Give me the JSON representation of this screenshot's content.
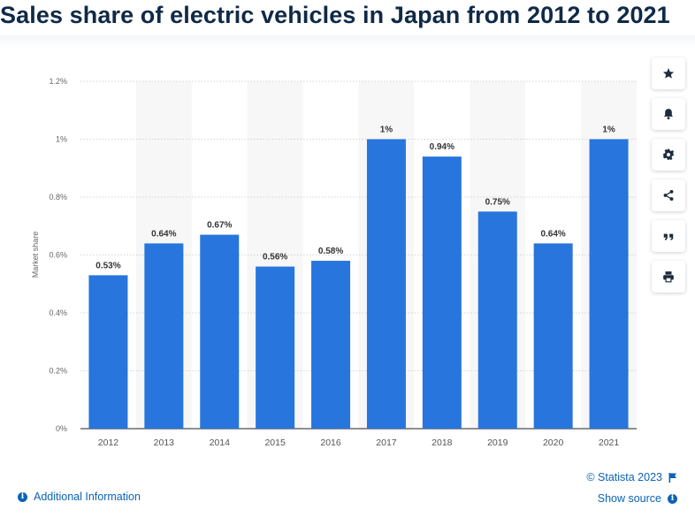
{
  "page": {
    "title": "Sales share of electric vehicles in Japan from 2012 to 2021"
  },
  "chart_data": {
    "type": "bar",
    "title": "Sales share of electric vehicles in Japan from 2012 to 2021",
    "categories": [
      "2012",
      "2013",
      "2014",
      "2015",
      "2016",
      "2017",
      "2018",
      "2019",
      "2020",
      "2021"
    ],
    "values": [
      0.53,
      0.64,
      0.67,
      0.56,
      0.58,
      1.0,
      0.94,
      0.75,
      0.64,
      1.0
    ],
    "data_labels": [
      "0.53%",
      "0.64%",
      "0.67%",
      "0.56%",
      "0.58%",
      "1%",
      "0.94%",
      "0.75%",
      "0.64%",
      "1%"
    ],
    "xlabel": "",
    "ylabel": "Market share",
    "ylim": [
      0,
      1.2
    ],
    "yticks": [
      0,
      0.2,
      0.4,
      0.6,
      0.8,
      1.0,
      1.2
    ],
    "ytick_labels": [
      "0%",
      "0.2%",
      "0.4%",
      "0.6%",
      "0.8%",
      "1%",
      "1.2%"
    ],
    "grid": true,
    "legend": "none",
    "bar_color": "#2875dd",
    "band_color": "#f7f7f7"
  },
  "toolbar": {
    "icons": [
      "star-icon",
      "bell-icon",
      "gear-icon",
      "share-icon",
      "quote-icon",
      "print-icon"
    ]
  },
  "footer": {
    "additional_info": "Additional Information",
    "copyright": "© Statista 2023",
    "show_source": "Show source"
  },
  "colors": {
    "title": "#0f2a47",
    "link": "#0b63b5",
    "axis_text": "#666666"
  }
}
